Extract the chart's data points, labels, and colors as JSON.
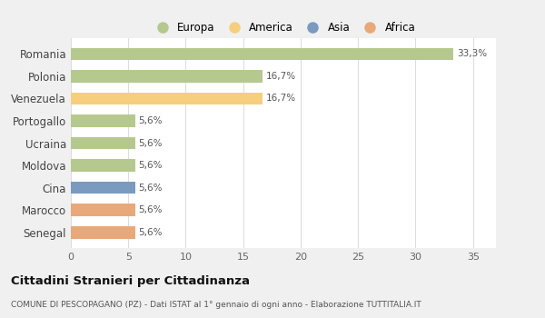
{
  "categories": [
    "Romania",
    "Polonia",
    "Venezuela",
    "Portogallo",
    "Ucraina",
    "Moldova",
    "Cina",
    "Marocco",
    "Senegal"
  ],
  "values": [
    33.3,
    16.7,
    16.7,
    5.6,
    5.6,
    5.6,
    5.6,
    5.6,
    5.6
  ],
  "colors": [
    "#b5c98e",
    "#b5c98e",
    "#f5cf7e",
    "#b5c98e",
    "#b5c98e",
    "#b5c98e",
    "#7a9abf",
    "#e8a97a",
    "#e8a97a"
  ],
  "labels": [
    "33,3%",
    "16,7%",
    "16,7%",
    "5,6%",
    "5,6%",
    "5,6%",
    "5,6%",
    "5,6%",
    "5,6%"
  ],
  "legend_entries": [
    {
      "label": "Europa",
      "color": "#b5c98e"
    },
    {
      "label": "America",
      "color": "#f5cf7e"
    },
    {
      "label": "Asia",
      "color": "#7a9abf"
    },
    {
      "label": "Africa",
      "color": "#e8a97a"
    }
  ],
  "xlim": [
    0,
    37
  ],
  "xticks": [
    0,
    5,
    10,
    15,
    20,
    25,
    30,
    35
  ],
  "title": "Cittadini Stranieri per Cittadinanza",
  "subtitle": "COMUNE DI PESCOPAGANO (PZ) - Dati ISTAT al 1° gennaio di ogni anno - Elaborazione TUTTITALIA.IT",
  "background_color": "#f0f0f0",
  "plot_bg_color": "#ffffff",
  "grid_color": "#dddddd",
  "bar_height": 0.55
}
